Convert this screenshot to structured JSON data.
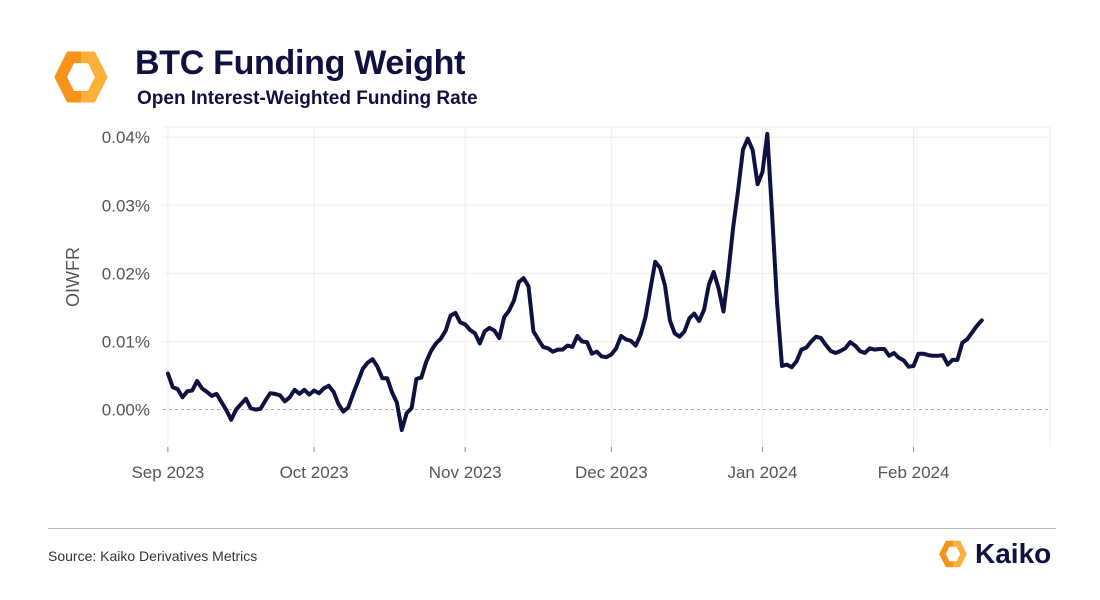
{
  "header": {
    "title": "BTC Funding Weight",
    "subtitle": "Open Interest-Weighted Funding Rate"
  },
  "footer": {
    "source": "Source: Kaiko Derivatives Metrics",
    "brand": "Kaiko"
  },
  "colors": {
    "line": "#0f1240",
    "logo_orange": "#f7931a",
    "logo_yellow": "#fbb03b",
    "grid": "#eeeeee",
    "zero_line": "#b0b0b0"
  },
  "icons": {
    "header_logo": "kaiko-logo-icon",
    "footer_logo": "kaiko-logo-icon"
  },
  "chart_data": {
    "type": "line",
    "title": "BTC Funding Weight",
    "subtitle": "Open Interest-Weighted Funding Rate",
    "xlabel": "",
    "ylabel": "OIWFR",
    "x_range": [
      "2023-08-31",
      "2024-02-29"
    ],
    "ylim": [
      -0.0055,
      0.0415
    ],
    "y_ticks": [
      {
        "value": 0.0,
        "label": "0.00%"
      },
      {
        "value": 0.01,
        "label": "0.01%"
      },
      {
        "value": 0.02,
        "label": "0.02%"
      },
      {
        "value": 0.03,
        "label": "0.03%"
      },
      {
        "value": 0.04,
        "label": "0.04%"
      }
    ],
    "x_ticks": [
      {
        "date": "2023-09-01",
        "label": "Sep 2023"
      },
      {
        "date": "2023-10-01",
        "label": "Oct 2023"
      },
      {
        "date": "2023-11-01",
        "label": "Nov 2023"
      },
      {
        "date": "2023-12-01",
        "label": "Dec 2023"
      },
      {
        "date": "2024-01-01",
        "label": "Jan 2024"
      },
      {
        "date": "2024-02-01",
        "label": "Feb 2024"
      }
    ],
    "grid": true,
    "legend": "none",
    "series": [
      {
        "points": [
          [
            "2023-09-01",
            0.0053
          ],
          [
            "2023-09-02",
            0.0033
          ],
          [
            "2023-09-03",
            0.003
          ],
          [
            "2023-09-04",
            0.0018
          ],
          [
            "2023-09-05",
            0.0027
          ],
          [
            "2023-09-06",
            0.0028
          ],
          [
            "2023-09-07",
            0.0042
          ],
          [
            "2023-09-08",
            0.0031
          ],
          [
            "2023-09-09",
            0.0026
          ],
          [
            "2023-09-10",
            0.002
          ],
          [
            "2023-09-11",
            0.0023
          ],
          [
            "2023-09-12",
            0.0011
          ],
          [
            "2023-09-13",
            -0.0001
          ],
          [
            "2023-09-14",
            -0.0015
          ],
          [
            "2023-09-15",
            0.0
          ],
          [
            "2023-09-16",
            0.0008
          ],
          [
            "2023-09-17",
            0.0016
          ],
          [
            "2023-09-18",
            0.0002
          ],
          [
            "2023-09-19",
            0.0
          ],
          [
            "2023-09-20",
            0.0001
          ],
          [
            "2023-09-21",
            0.0013
          ],
          [
            "2023-09-22",
            0.0024
          ],
          [
            "2023-09-23",
            0.0023
          ],
          [
            "2023-09-24",
            0.0021
          ],
          [
            "2023-09-25",
            0.0012
          ],
          [
            "2023-09-26",
            0.0018
          ],
          [
            "2023-09-27",
            0.0029
          ],
          [
            "2023-09-28",
            0.0023
          ],
          [
            "2023-09-29",
            0.0029
          ],
          [
            "2023-09-30",
            0.0022
          ],
          [
            "2023-10-01",
            0.0028
          ],
          [
            "2023-10-02",
            0.0024
          ],
          [
            "2023-10-03",
            0.0031
          ],
          [
            "2023-10-04",
            0.0035
          ],
          [
            "2023-10-05",
            0.0026
          ],
          [
            "2023-10-06",
            0.0008
          ],
          [
            "2023-10-07",
            -0.0003
          ],
          [
            "2023-10-08",
            0.0003
          ],
          [
            "2023-10-09",
            0.0023
          ],
          [
            "2023-10-10",
            0.0041
          ],
          [
            "2023-10-11",
            0.006
          ],
          [
            "2023-10-12",
            0.0069
          ],
          [
            "2023-10-13",
            0.0074
          ],
          [
            "2023-10-14",
            0.0063
          ],
          [
            "2023-10-15",
            0.0046
          ],
          [
            "2023-10-16",
            0.0046
          ],
          [
            "2023-10-17",
            0.0025
          ],
          [
            "2023-10-18",
            0.001
          ],
          [
            "2023-10-19",
            -0.003
          ],
          [
            "2023-10-20",
            -0.0005
          ],
          [
            "2023-10-21",
            0.0002
          ],
          [
            "2023-10-22",
            0.0045
          ],
          [
            "2023-10-23",
            0.0047
          ],
          [
            "2023-10-24",
            0.007
          ],
          [
            "2023-10-25",
            0.0086
          ],
          [
            "2023-10-26",
            0.0097
          ],
          [
            "2023-10-27",
            0.0104
          ],
          [
            "2023-10-28",
            0.0116
          ],
          [
            "2023-10-29",
            0.0138
          ],
          [
            "2023-10-30",
            0.0142
          ],
          [
            "2023-10-31",
            0.0128
          ],
          [
            "2023-11-01",
            0.0125
          ],
          [
            "2023-11-02",
            0.0117
          ],
          [
            "2023-11-03",
            0.0112
          ],
          [
            "2023-11-04",
            0.0097
          ],
          [
            "2023-11-05",
            0.0115
          ],
          [
            "2023-11-06",
            0.012
          ],
          [
            "2023-11-07",
            0.0116
          ],
          [
            "2023-11-08",
            0.0105
          ],
          [
            "2023-11-09",
            0.0136
          ],
          [
            "2023-11-10",
            0.0145
          ],
          [
            "2023-11-11",
            0.016
          ],
          [
            "2023-11-12",
            0.0187
          ],
          [
            "2023-11-13",
            0.0193
          ],
          [
            "2023-11-14",
            0.0181
          ],
          [
            "2023-11-15",
            0.0115
          ],
          [
            "2023-11-16",
            0.0103
          ],
          [
            "2023-11-17",
            0.0092
          ],
          [
            "2023-11-18",
            0.009
          ],
          [
            "2023-11-19",
            0.0085
          ],
          [
            "2023-11-20",
            0.0088
          ],
          [
            "2023-11-21",
            0.0088
          ],
          [
            "2023-11-22",
            0.0094
          ],
          [
            "2023-11-23",
            0.0092
          ],
          [
            "2023-11-24",
            0.0108
          ],
          [
            "2023-11-25",
            0.01
          ],
          [
            "2023-11-26",
            0.0099
          ],
          [
            "2023-11-27",
            0.0082
          ],
          [
            "2023-11-28",
            0.0085
          ],
          [
            "2023-11-29",
            0.0078
          ],
          [
            "2023-11-30",
            0.0077
          ],
          [
            "2023-12-01",
            0.0081
          ],
          [
            "2023-12-02",
            0.009
          ],
          [
            "2023-12-03",
            0.0108
          ],
          [
            "2023-12-04",
            0.0103
          ],
          [
            "2023-12-05",
            0.0101
          ],
          [
            "2023-12-06",
            0.0094
          ],
          [
            "2023-12-07",
            0.011
          ],
          [
            "2023-12-08",
            0.0136
          ],
          [
            "2023-12-09",
            0.0177
          ],
          [
            "2023-12-10",
            0.0217
          ],
          [
            "2023-12-11",
            0.0208
          ],
          [
            "2023-12-12",
            0.0182
          ],
          [
            "2023-12-13",
            0.0131
          ],
          [
            "2023-12-14",
            0.0112
          ],
          [
            "2023-12-15",
            0.0107
          ],
          [
            "2023-12-16",
            0.0115
          ],
          [
            "2023-12-17",
            0.0134
          ],
          [
            "2023-12-18",
            0.0141
          ],
          [
            "2023-12-19",
            0.013
          ],
          [
            "2023-12-20",
            0.0146
          ],
          [
            "2023-12-21",
            0.0183
          ],
          [
            "2023-12-22",
            0.0202
          ],
          [
            "2023-12-23",
            0.0178
          ],
          [
            "2023-12-24",
            0.0144
          ],
          [
            "2023-12-25",
            0.0201
          ],
          [
            "2023-12-26",
            0.0268
          ],
          [
            "2023-12-27",
            0.0322
          ],
          [
            "2023-12-28",
            0.0382
          ],
          [
            "2023-12-29",
            0.0398
          ],
          [
            "2023-12-30",
            0.0381
          ],
          [
            "2023-12-31",
            0.0331
          ],
          [
            "2024-01-01",
            0.0349
          ],
          [
            "2024-01-02",
            0.0405
          ],
          [
            "2024-01-03",
            0.0284
          ],
          [
            "2024-01-04",
            0.0156
          ],
          [
            "2024-01-05",
            0.0064
          ],
          [
            "2024-01-06",
            0.0066
          ],
          [
            "2024-01-07",
            0.0062
          ],
          [
            "2024-01-08",
            0.0071
          ],
          [
            "2024-01-09",
            0.0088
          ],
          [
            "2024-01-10",
            0.0091
          ],
          [
            "2024-01-11",
            0.01
          ],
          [
            "2024-01-12",
            0.0107
          ],
          [
            "2024-01-13",
            0.0105
          ],
          [
            "2024-01-14",
            0.0095
          ],
          [
            "2024-01-15",
            0.0086
          ],
          [
            "2024-01-16",
            0.0083
          ],
          [
            "2024-01-17",
            0.0086
          ],
          [
            "2024-01-18",
            0.009
          ],
          [
            "2024-01-19",
            0.0099
          ],
          [
            "2024-01-20",
            0.0094
          ],
          [
            "2024-01-21",
            0.0086
          ],
          [
            "2024-01-22",
            0.0083
          ],
          [
            "2024-01-23",
            0.009
          ],
          [
            "2024-01-24",
            0.0088
          ],
          [
            "2024-01-25",
            0.0089
          ],
          [
            "2024-01-26",
            0.0089
          ],
          [
            "2024-01-27",
            0.0079
          ],
          [
            "2024-01-28",
            0.0083
          ],
          [
            "2024-01-29",
            0.0076
          ],
          [
            "2024-01-30",
            0.0072
          ],
          [
            "2024-01-31",
            0.0063
          ],
          [
            "2024-02-01",
            0.0064
          ],
          [
            "2024-02-02",
            0.0082
          ],
          [
            "2024-02-03",
            0.0082
          ],
          [
            "2024-02-04",
            0.008
          ],
          [
            "2024-02-05",
            0.0079
          ],
          [
            "2024-02-06",
            0.0079
          ],
          [
            "2024-02-07",
            0.008
          ],
          [
            "2024-02-08",
            0.0066
          ],
          [
            "2024-02-09",
            0.0073
          ],
          [
            "2024-02-10",
            0.0073
          ],
          [
            "2024-02-11",
            0.0098
          ],
          [
            "2024-02-12",
            0.0103
          ],
          [
            "2024-02-13",
            0.0113
          ],
          [
            "2024-02-14",
            0.0123
          ],
          [
            "2024-02-15",
            0.0131
          ]
        ]
      }
    ]
  }
}
